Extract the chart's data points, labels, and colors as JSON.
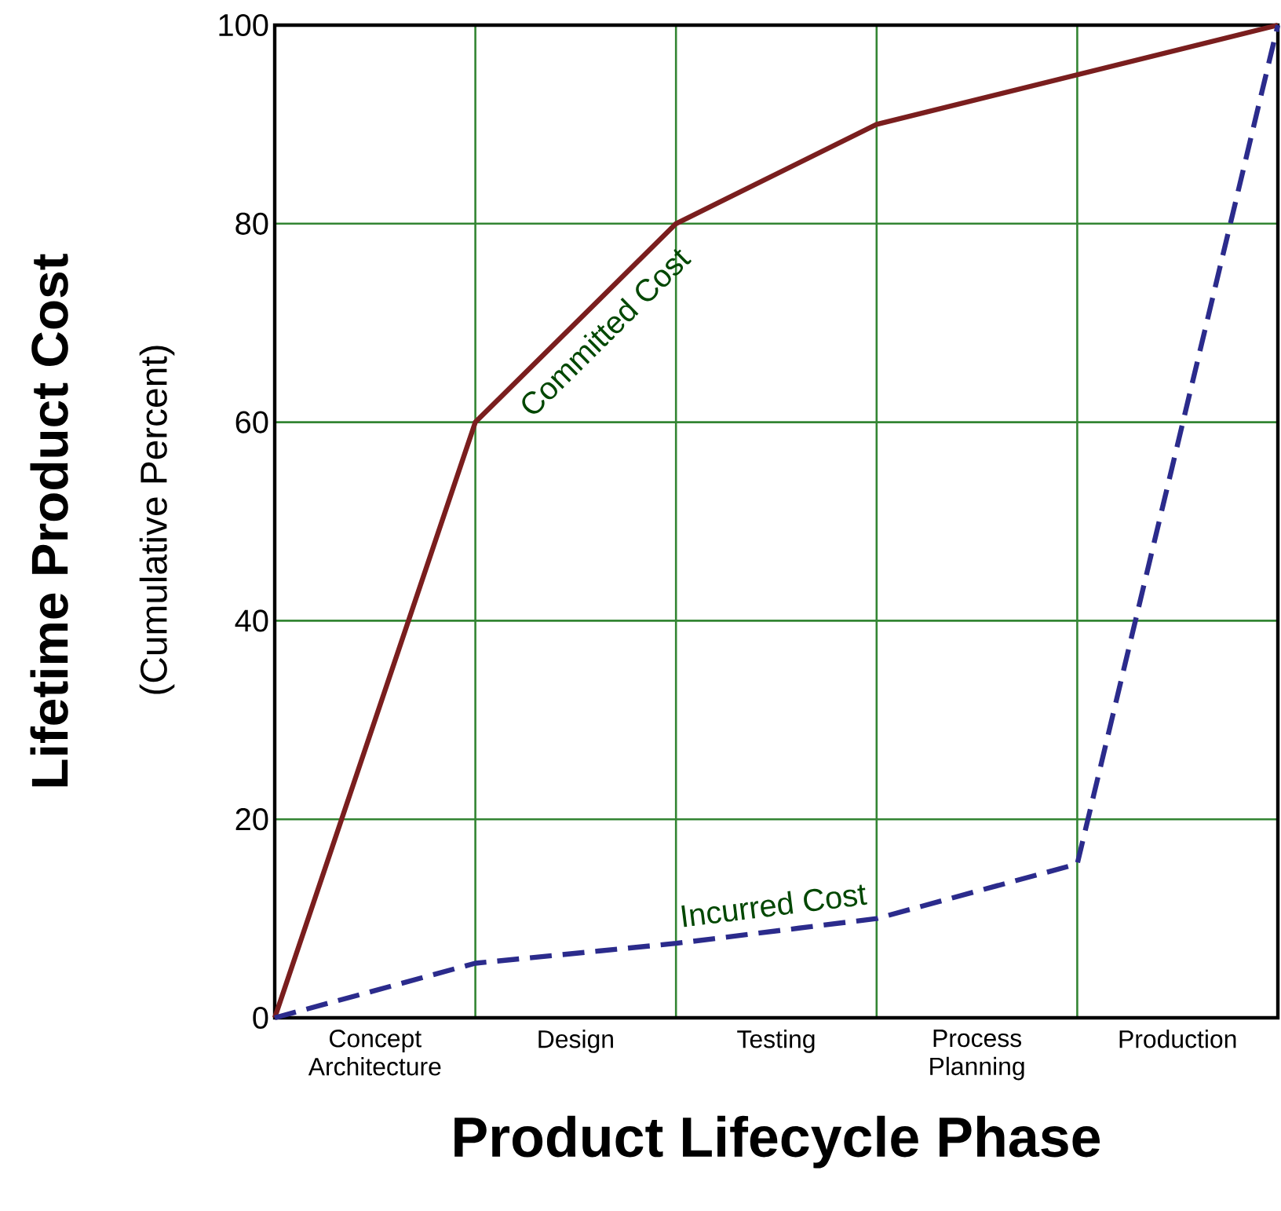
{
  "chart_data": {
    "type": "line",
    "xlabel": "Product Lifecycle Phase",
    "ylabel": "Lifetime Product Cost",
    "annotations": [
      "(Cumulative Percent)",
      "Concept Architecture",
      "Design",
      "Testing",
      "Process Planning",
      "Production"
    ],
    "categories": [
      null,
      null,
      null,
      null,
      null,
      null
    ],
    "ylim": [
      0,
      100
    ],
    "yticks": [
      0,
      20,
      40,
      60,
      80,
      100
    ],
    "grid": true,
    "marker": "none",
    "series": [
      {
        "name": "Committed Cost",
        "color": "#7a1e1e",
        "line_style": "solid",
        "values": [
          0,
          60,
          80,
          90,
          95,
          100
        ]
      },
      {
        "name": "Incurred Cost",
        "color": "#2b2b8c",
        "line_style": "dashed",
        "values": [
          0,
          5.5,
          7.5,
          10,
          15.5,
          100
        ]
      }
    ]
  }
}
